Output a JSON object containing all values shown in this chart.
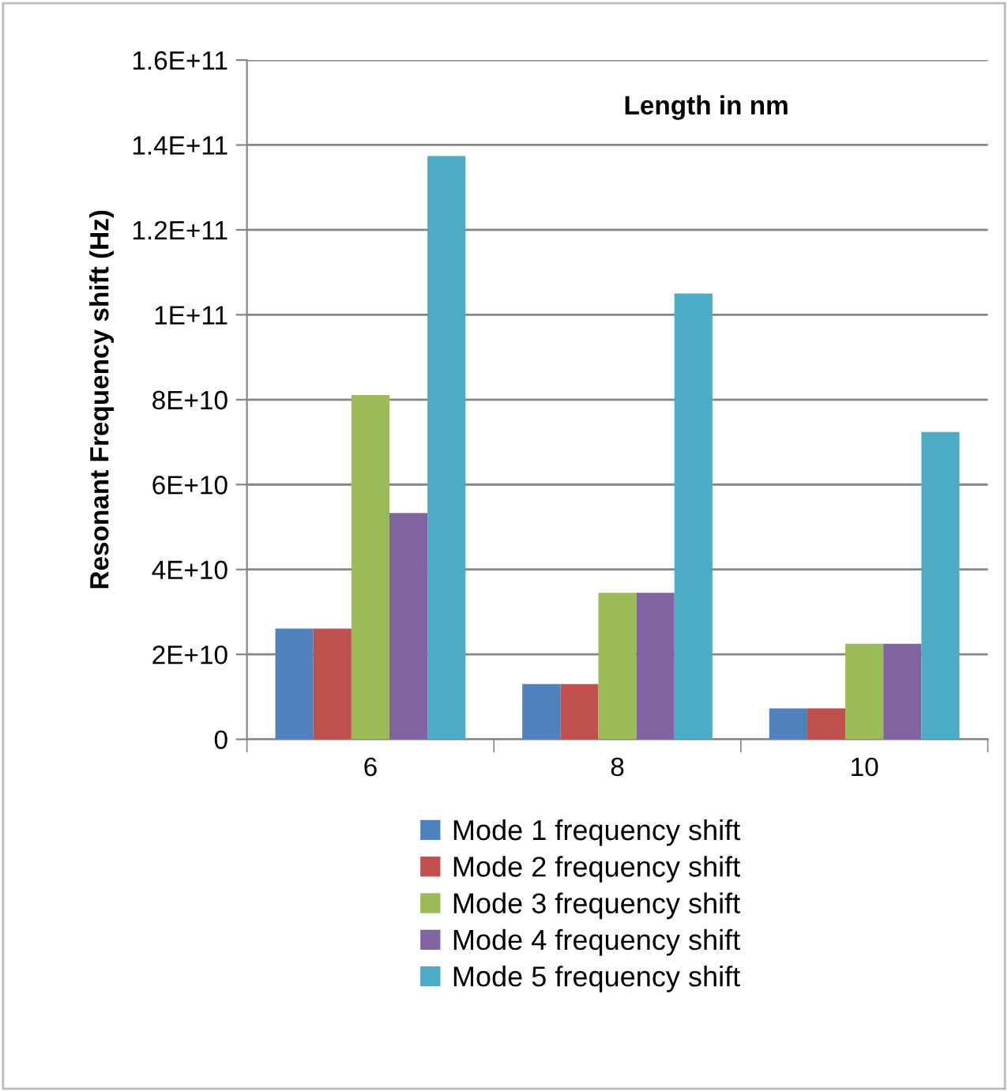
{
  "chart_data": {
    "type": "bar",
    "ylabel": "Resonant Frequency shift (Hz)",
    "annotations": [
      "Length in nm"
    ],
    "categories": [
      "6",
      "8",
      "10"
    ],
    "series": [
      {
        "name": "Mode 1 frequency shift",
        "color": "#4f81bd",
        "values": [
          26100000000.0,
          13000000000.0,
          7300000000.0
        ]
      },
      {
        "name": "Mode 2 frequency shift",
        "color": "#c0504d",
        "values": [
          26100000000.0,
          13000000000.0,
          7300000000.0
        ]
      },
      {
        "name": "Mode 3 frequency shift",
        "color": "#9bbb59",
        "values": [
          81100000000.0,
          34500000000.0,
          22500000000.0
        ]
      },
      {
        "name": "Mode 4 frequency shift",
        "color": "#8064a2",
        "values": [
          53300000000.0,
          34500000000.0,
          22500000000.0
        ]
      },
      {
        "name": "Mode 5 frequency shift",
        "color": "#4bacc6",
        "values": [
          137400000000.0,
          105000000000.0,
          72400000000.0
        ]
      }
    ],
    "ylim": [
      0,
      160000000000.0
    ],
    "yticks": [
      0,
      {
        "value": 20000000000.0,
        "label": "2E+10"
      },
      {
        "value": 40000000000.0,
        "label": "4E+10"
      },
      {
        "value": 60000000000.0,
        "label": "6E+10"
      },
      {
        "value": 80000000000.0,
        "label": "8E+10"
      },
      {
        "value": 100000000000.0,
        "label": "1E+11"
      },
      {
        "value": 120000000000.0,
        "label": "1.2E+11"
      },
      {
        "value": 140000000000.0,
        "label": "1.4E+11"
      },
      {
        "value": 160000000000.0,
        "label": "1.6E+11"
      }
    ],
    "grid": "y",
    "legend": "bottom"
  }
}
